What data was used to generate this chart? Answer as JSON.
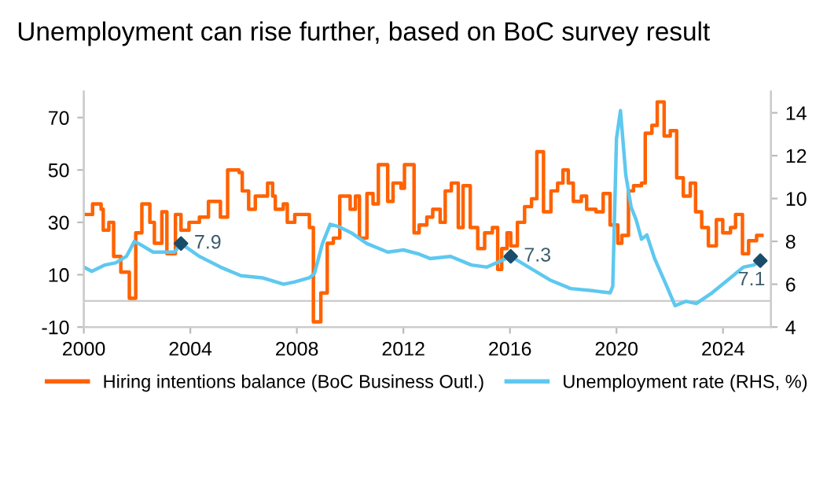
{
  "chart_data": {
    "type": "line",
    "title": "Unemployment can rise further, based on BoC survey result",
    "series": [
      {
        "name": "Hiring intentions balance (BoC Business Outl.)",
        "type": "step",
        "color": "#ff6200",
        "x": [
          2000.0,
          2000.33,
          2000.65,
          2000.73,
          2000.94,
          2001.12,
          2001.39,
          2001.71,
          2001.95,
          2002.18,
          2002.48,
          2002.65,
          2002.93,
          2003.12,
          2003.44,
          2003.65,
          2003.95,
          2004.34,
          2004.68,
          2005.13,
          2005.4,
          2005.83,
          2005.95,
          2006.19,
          2006.44,
          2006.9,
          2007.09,
          2007.19,
          2007.49,
          2007.64,
          2007.92,
          2008.47,
          2008.62,
          2008.9,
          2009.14,
          2009.37,
          2009.61,
          2010.0,
          2010.2,
          2010.35,
          2010.63,
          2010.86,
          2011.06,
          2011.41,
          2011.61,
          2011.91,
          2012.04,
          2012.4,
          2012.59,
          2012.88,
          2013.1,
          2013.38,
          2013.57,
          2013.8,
          2014.06,
          2014.24,
          2014.51,
          2014.79,
          2015.05,
          2015.34,
          2015.54,
          2015.69,
          2015.89,
          2016.03,
          2016.28,
          2016.55,
          2016.81,
          2017.01,
          2017.26,
          2017.54,
          2017.79,
          2017.99,
          2018.19,
          2018.38,
          2018.68,
          2018.88,
          2019.23,
          2019.5,
          2019.76,
          2020.05,
          2020.2,
          2020.45,
          2020.64,
          2020.94,
          2021.08,
          2021.33,
          2021.53,
          2021.79,
          2022.02,
          2022.26,
          2022.51,
          2022.77,
          2022.97,
          2023.2,
          2023.45,
          2023.75,
          2023.99,
          2024.28,
          2024.47,
          2024.73,
          2024.96,
          2025.26,
          2025.46
        ],
        "values": [
          33,
          37,
          35,
          27,
          30,
          17,
          11,
          1,
          26,
          37,
          30,
          22,
          34,
          18,
          33,
          27,
          30,
          32,
          38,
          32,
          50,
          49,
          42,
          35,
          40,
          45,
          40,
          35,
          37,
          30,
          33,
          28,
          -8,
          3,
          22,
          24,
          40,
          35,
          40,
          24,
          41,
          37,
          52,
          38,
          45,
          43,
          52,
          26,
          29,
          32,
          35,
          30,
          42,
          45,
          28,
          44,
          28,
          20,
          26,
          28,
          12,
          20,
          26,
          21,
          30,
          36,
          39,
          57,
          34,
          42,
          45,
          50,
          45,
          38,
          40,
          35,
          34,
          41,
          29,
          22,
          25,
          42,
          44,
          45,
          64,
          67,
          76,
          63,
          65,
          47,
          40,
          45,
          34,
          28,
          21,
          31,
          26,
          28,
          33,
          18,
          23,
          25,
          25
        ]
      },
      {
        "name": "Unemployment rate (RHS, %)",
        "axis": "y2",
        "color": "#5ec8f0",
        "x": [
          2000.0,
          2000.3,
          2000.8,
          2001.2,
          2001.6,
          2001.9,
          2002.2,
          2002.6,
          2003.0,
          2003.4,
          2003.65,
          2004.34,
          2005.13,
          2005.9,
          2006.7,
          2007.5,
          2007.9,
          2008.47,
          2008.66,
          2008.96,
          2009.25,
          2009.55,
          2010.04,
          2010.63,
          2011.41,
          2012.0,
          2012.6,
          2013.0,
          2013.77,
          2014.55,
          2015.14,
          2016.03,
          2016.7,
          2017.5,
          2018.28,
          2019.07,
          2019.76,
          2019.86,
          2020.0,
          2020.15,
          2020.35,
          2020.55,
          2020.74,
          2020.94,
          2021.14,
          2021.43,
          2021.82,
          2022.2,
          2022.6,
          2023.0,
          2023.59,
          2024.18,
          2024.77,
          2025.16,
          2025.4
        ],
        "values": [
          6.8,
          6.6,
          6.9,
          7.0,
          7.3,
          8.0,
          7.8,
          7.5,
          7.5,
          7.5,
          7.9,
          7.3,
          6.8,
          6.4,
          6.3,
          6.0,
          6.1,
          6.3,
          6.5,
          7.9,
          8.8,
          8.7,
          8.4,
          7.9,
          7.5,
          7.6,
          7.4,
          7.2,
          7.3,
          6.9,
          6.8,
          7.3,
          6.8,
          6.2,
          5.8,
          5.7,
          5.6,
          5.9,
          12.8,
          14.1,
          11.1,
          9.6,
          9.0,
          8.1,
          8.3,
          7.2,
          6.1,
          5.0,
          5.2,
          5.1,
          5.6,
          6.2,
          6.8,
          6.9,
          7.1
        ]
      },
      {
        "type": "scatter",
        "axis": "y2",
        "color": "#1b4d6b",
        "marker": "diamond",
        "x": [
          2003.65,
          2016.03,
          2025.4
        ],
        "values": [
          7.9,
          7.3,
          7.1
        ],
        "value_labels": [
          "7.9",
          "7.3",
          "7.1"
        ]
      }
    ],
    "xlim": [
      2000,
      2025.8
    ],
    "xticks": [
      2000,
      2004,
      2008,
      2012,
      2016,
      2020,
      2024
    ],
    "ylim": [
      -10,
      80
    ],
    "yticks": [
      -10,
      10,
      30,
      50,
      70
    ],
    "y2lim": [
      4,
      15
    ],
    "y2ticks": [
      4,
      6,
      8,
      10,
      12,
      14
    ],
    "ref_lines": [
      {
        "axis": "y",
        "value": 0,
        "color": "#cccccc"
      }
    ],
    "grid": false,
    "legend": "bottom"
  }
}
